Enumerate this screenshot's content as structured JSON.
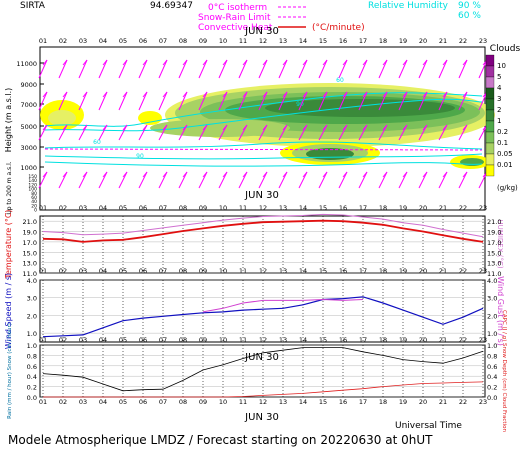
{
  "header": {
    "site": "SIRTA",
    "coords": "94.69347",
    "legend_isotherm": "0°C isotherm",
    "legend_snow": "Snow-Rain Limit",
    "legend_convective": "Convective Heat",
    "legend_convective_units": "(°C/minute)",
    "legend_rh": "Relative Humidity",
    "rh_90": "90 %",
    "rh_60": "60 %"
  },
  "date_label": "JUN 30",
  "hours": [
    "01",
    "02",
    "03",
    "04",
    "05",
    "06",
    "07",
    "08",
    "09",
    "10",
    "11",
    "12",
    "13",
    "14",
    "15",
    "16",
    "17",
    "18",
    "19",
    "20",
    "21",
    "22",
    "23"
  ],
  "colors": {
    "cloud_levels": [
      "#ffff00",
      "#e6f064",
      "#a8d264",
      "#7cc05a",
      "#4ea84a",
      "#3a8a3a",
      "#267028",
      "#1a5a1a",
      "#c878c8",
      "#a030a0",
      "#800080"
    ],
    "temperature": "#e01010",
    "humidex": "#d070d0",
    "wind_speed": "#1010c0",
    "wind_gust": "#d040d0",
    "capc": "#e02020",
    "cloud_fraction": "#000000",
    "rh": "#00e0e0",
    "isotherm": "#ff00ff"
  },
  "chart_data": [
    {
      "type": "heatmap",
      "name": "clouds",
      "ylabel": "Height (m a.s.l.)",
      "ylabel_lower": "Up to 200 m a.s.l.",
      "yticks": [
        "11000",
        "9000",
        "7000",
        "5000",
        "3000",
        "1000",
        "150",
        "140",
        "120",
        "100",
        "80",
        "60",
        "40",
        "20",
        "0"
      ],
      "legend_title": "Clouds",
      "legend_labels": [
        "10",
        "5",
        "4",
        "3",
        "2",
        "1",
        "0.2",
        "0.1",
        "0.05",
        "0.01"
      ],
      "legend_units": "(g/kg)",
      "wind_barb_rows": 2,
      "rh_labels": [
        "60",
        "90",
        "60",
        "90"
      ]
    },
    {
      "type": "line",
      "name": "temperature",
      "ylabel": "Temperature (°C)",
      "ylabel_right": "HUMIDEX (°C)",
      "yticks": [
        "21.0",
        "19.0",
        "17.0",
        "15.0",
        "13.0",
        "11.0"
      ],
      "ylim": [
        11,
        22
      ],
      "x": [
        1,
        2,
        3,
        4,
        5,
        6,
        7,
        8,
        9,
        10,
        11,
        12,
        13,
        14,
        15,
        16,
        17,
        18,
        19,
        20,
        21,
        22,
        23
      ],
      "series": [
        {
          "name": "Temperature",
          "values": [
            17.6,
            17.5,
            17.0,
            17.3,
            17.4,
            17.9,
            18.5,
            19.1,
            19.6,
            20.1,
            20.5,
            20.8,
            20.9,
            21.0,
            21.1,
            21.0,
            20.7,
            20.3,
            19.6,
            19.0,
            18.3,
            17.6,
            17.0
          ]
        },
        {
          "name": "Humidex",
          "values": [
            19.0,
            18.8,
            18.4,
            18.5,
            18.7,
            19.2,
            19.7,
            20.2,
            20.7,
            21.2,
            21.6,
            21.9,
            22.0,
            22.1,
            22.3,
            22.2,
            21.8,
            21.4,
            20.7,
            20.2,
            19.4,
            18.7,
            18.0
          ]
        }
      ]
    },
    {
      "type": "line",
      "name": "wind",
      "ylabel": "Wind Speed (m / s)",
      "ylabel_right": "Wind Gust (m / s)",
      "yticks": [
        "4.0",
        "3.0",
        "2.0",
        "1.0"
      ],
      "ylim": [
        0.5,
        4.0
      ],
      "x": [
        1,
        2,
        3,
        4,
        5,
        6,
        7,
        8,
        9,
        10,
        11,
        12,
        13,
        14,
        15,
        16,
        17,
        18,
        19,
        20,
        21,
        22,
        23
      ],
      "series": [
        {
          "name": "Wind Speed",
          "values": [
            0.8,
            0.85,
            0.9,
            1.3,
            1.7,
            1.85,
            1.95,
            2.05,
            2.15,
            2.2,
            2.3,
            2.35,
            2.4,
            2.6,
            2.9,
            2.95,
            3.05,
            2.7,
            2.3,
            1.9,
            1.5,
            1.9,
            2.4
          ]
        },
        {
          "name": "Wind Gust",
          "values": [
            null,
            null,
            null,
            null,
            null,
            null,
            null,
            null,
            2.2,
            2.4,
            2.7,
            2.85,
            2.85,
            2.85,
            2.9,
            2.85,
            2.9,
            null,
            null,
            null,
            null,
            null,
            null
          ]
        }
      ]
    },
    {
      "type": "line",
      "name": "precip",
      "ylabel": "Rain (mm / hour) Snow (cm / hour)",
      "ylabel_right": "CAPC (J / g) Snow Depth (cm) Cloud Fraction",
      "yticks": [
        "1.0",
        "0.8",
        "0.6",
        "0.4",
        "0.2",
        "0.0"
      ],
      "ylim": [
        0,
        1.0
      ],
      "x": [
        1,
        2,
        3,
        4,
        5,
        6,
        7,
        8,
        9,
        10,
        11,
        12,
        13,
        14,
        15,
        16,
        17,
        18,
        19,
        20,
        21,
        22,
        23
      ],
      "series": [
        {
          "name": "Cloud Fraction",
          "values": [
            0.45,
            0.42,
            0.38,
            0.25,
            0.12,
            0.14,
            0.15,
            0.32,
            0.52,
            0.62,
            0.74,
            0.85,
            0.9,
            0.95,
            0.95,
            0.95,
            0.87,
            0.8,
            0.72,
            0.68,
            0.65,
            0.75,
            0.88
          ]
        },
        {
          "name": "CAPC",
          "values": [
            0,
            0,
            0,
            0,
            0,
            0,
            0,
            0,
            0,
            0,
            0.01,
            0.03,
            0.05,
            0.07,
            0.1,
            0.13,
            0.16,
            0.2,
            0.23,
            0.26,
            0.27,
            0.28,
            0.29
          ]
        }
      ]
    }
  ],
  "footer": {
    "universal_time": "Universal Time",
    "title": "Modele Atmospherique LMDZ / Forecast starting on 20220630 at 0hUT"
  }
}
